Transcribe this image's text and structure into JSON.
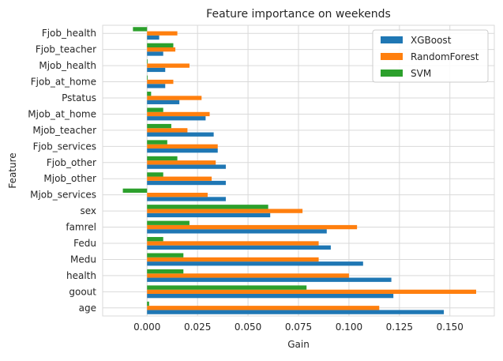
{
  "chart_data": {
    "type": "bar",
    "orientation": "horizontal",
    "title": "Feature importance on weekends",
    "xlabel": "Gain",
    "ylabel": "Feature",
    "categories": [
      "age",
      "goout",
      "health",
      "Medu",
      "Fedu",
      "famrel",
      "sex",
      "Mjob_services",
      "Mjob_other",
      "Fjob_other",
      "Fjob_services",
      "Mjob_teacher",
      "Mjob_at_home",
      "Pstatus",
      "Fjob_at_home",
      "Mjob_health",
      "Fjob_teacher",
      "Fjob_health"
    ],
    "series": [
      {
        "name": "XGBoost",
        "color": "#1f77b4",
        "values": [
          0.147,
          0.122,
          0.121,
          0.107,
          0.091,
          0.089,
          0.061,
          0.039,
          0.039,
          0.039,
          0.035,
          0.033,
          0.029,
          0.016,
          0.009,
          0.009,
          0.008,
          0.006
        ]
      },
      {
        "name": "RandomForest",
        "color": "#ff7f0e",
        "values": [
          0.115,
          0.163,
          0.1,
          0.085,
          0.085,
          0.104,
          0.077,
          0.03,
          0.032,
          0.034,
          0.035,
          0.02,
          0.031,
          0.027,
          0.013,
          0.021,
          0.014,
          0.015
        ]
      },
      {
        "name": "SVM",
        "color": "#2ca02c",
        "values": [
          0.001,
          0.079,
          0.018,
          0.018,
          0.008,
          0.021,
          0.06,
          -0.012,
          0.008,
          0.015,
          0.01,
          0.012,
          0.008,
          0.002,
          0.0,
          0.0,
          0.013,
          -0.007
        ]
      }
    ],
    "xlim": [
      -0.022,
      0.172
    ],
    "xticks": [
      "0.000",
      "0.025",
      "0.050",
      "0.075",
      "0.100",
      "0.125",
      "0.150"
    ],
    "grid": true,
    "legend_position": "top-right"
  }
}
